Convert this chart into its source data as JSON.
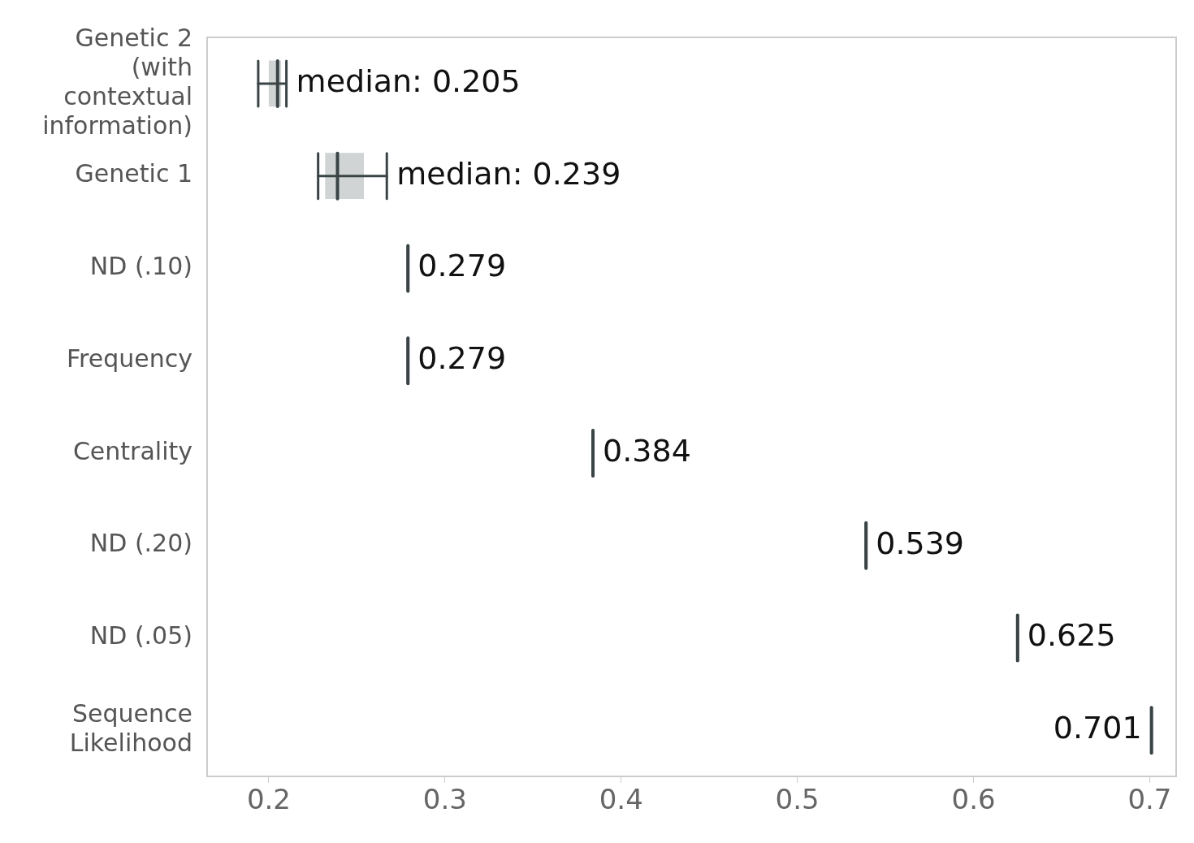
{
  "chart_data": {
    "type": "box",
    "orientation": "horizontal",
    "categories": [
      "Genetic 2 (with contextual information)",
      "Genetic 1",
      "ND (.10)",
      "Frequency",
      "Centrality",
      "ND (.20)",
      "ND (.05)",
      "Sequence Likelihood"
    ],
    "boxes": [
      {
        "low": 0.194,
        "q1": 0.2,
        "median": 0.205,
        "q3": 0.207,
        "high": 0.21
      },
      {
        "low": 0.228,
        "q1": 0.232,
        "median": 0.239,
        "q3": 0.254,
        "high": 0.267
      },
      {
        "low": 0.279,
        "q1": 0.279,
        "median": 0.279,
        "q3": 0.279,
        "high": 0.279
      },
      {
        "low": 0.279,
        "q1": 0.279,
        "median": 0.279,
        "q3": 0.279,
        "high": 0.279
      },
      {
        "low": 0.384,
        "q1": 0.384,
        "median": 0.384,
        "q3": 0.384,
        "high": 0.384
      },
      {
        "low": 0.539,
        "q1": 0.539,
        "median": 0.539,
        "q3": 0.539,
        "high": 0.539
      },
      {
        "low": 0.625,
        "q1": 0.625,
        "median": 0.625,
        "q3": 0.625,
        "high": 0.625
      },
      {
        "low": 0.701,
        "q1": 0.701,
        "median": 0.701,
        "q3": 0.701,
        "high": 0.701
      }
    ],
    "value_labels": [
      "median: 0.205",
      "median: 0.239",
      "0.279",
      "0.279",
      "0.384",
      "0.539",
      "0.625",
      "0.701"
    ],
    "colors": [
      "#d0d4d4",
      "#d0d4d4",
      "#3a4446",
      "#3a4446",
      "#3a4446",
      "#3a4446",
      "#3a4446",
      "#3a4446"
    ],
    "xlim": [
      0.165,
      0.715
    ],
    "xticks": [
      0.2,
      0.3,
      0.4,
      0.5,
      0.6,
      0.7
    ]
  }
}
